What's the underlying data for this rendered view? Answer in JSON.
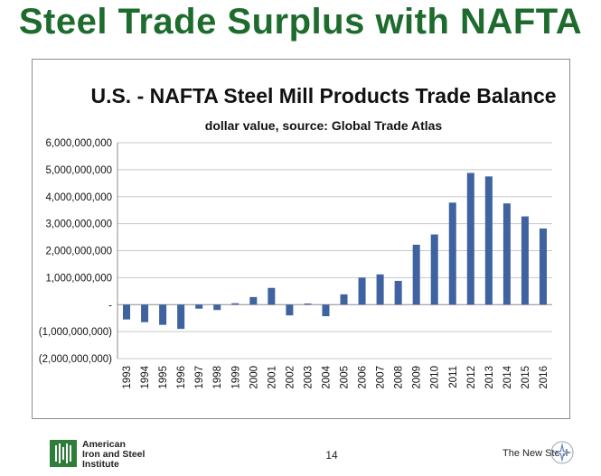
{
  "slide": {
    "title": "Steel Trade Surplus with NAFTA",
    "page_number": "14",
    "footer_org": [
      "American",
      "Iron and Steel",
      "Institute"
    ],
    "footer_brand": "The New Steel",
    "title_color": "#1e6b2e"
  },
  "icons": {
    "logo": "aisi-logo-icon",
    "brand_mark": "star-icon"
  },
  "chart_data": {
    "type": "bar",
    "title": "U.S. - NAFTA Steel Mill Products Trade Balance",
    "subtitle": "dollar value, source: Global Trade Atlas",
    "xlabel": "",
    "ylabel": "",
    "ylim": [
      -2000000000,
      6000000000
    ],
    "y_ticks": [
      {
        "value": 6000000000,
        "label": "6,000,000,000"
      },
      {
        "value": 5000000000,
        "label": "5,000,000,000"
      },
      {
        "value": 4000000000,
        "label": "4,000,000,000"
      },
      {
        "value": 3000000000,
        "label": "3,000,000,000"
      },
      {
        "value": 2000000000,
        "label": "2,000,000,000"
      },
      {
        "value": 1000000000,
        "label": "1,000,000,000"
      },
      {
        "value": 0,
        "label": "-"
      },
      {
        "value": -1000000000,
        "label": "(1,000,000,000)"
      },
      {
        "value": -2000000000,
        "label": "(2,000,000,000)"
      }
    ],
    "categories": [
      "1993",
      "1994",
      "1995",
      "1996",
      "1997",
      "1998",
      "1999",
      "2000",
      "2001",
      "2002",
      "2003",
      "2004",
      "2005",
      "2006",
      "2007",
      "2008",
      "2009",
      "2010",
      "2011",
      "2012",
      "2013",
      "2014",
      "2015",
      "2016"
    ],
    "values": [
      -550000000,
      -650000000,
      -750000000,
      -900000000,
      -150000000,
      -200000000,
      50000000,
      280000000,
      620000000,
      -400000000,
      40000000,
      -430000000,
      380000000,
      1000000000,
      1120000000,
      880000000,
      2220000000,
      2600000000,
      3780000000,
      4880000000,
      4750000000,
      3750000000,
      3270000000,
      2820000000
    ],
    "bar_color": "#3f63a0",
    "grid": true
  }
}
